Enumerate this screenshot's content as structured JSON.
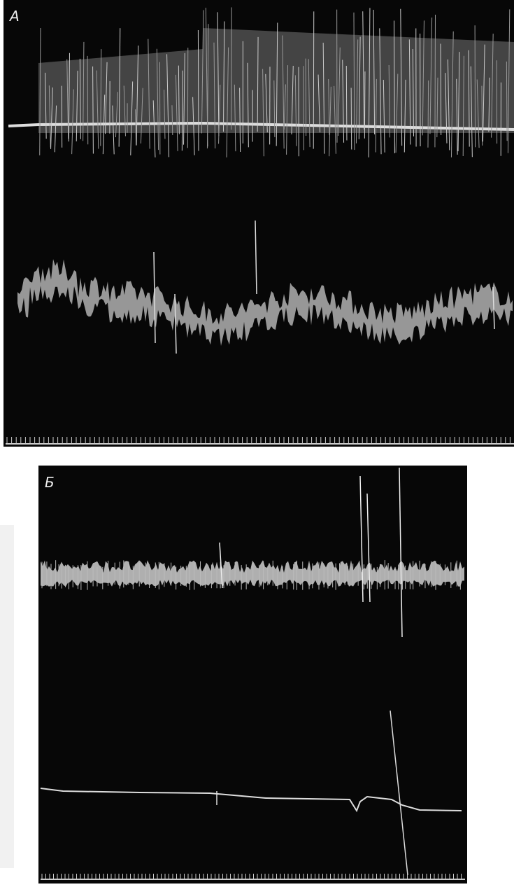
{
  "panels": [
    {
      "label": "А"
    },
    {
      "label": "Б"
    }
  ]
}
